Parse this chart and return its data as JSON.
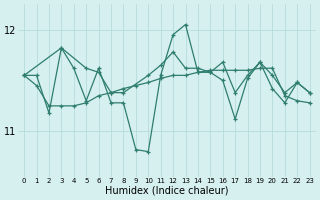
{
  "line1": {
    "x": [
      0,
      1,
      2,
      3,
      4,
      5,
      6,
      7,
      8,
      9,
      10,
      11,
      12,
      13,
      14,
      15,
      16,
      17,
      18,
      19,
      20,
      21,
      22,
      23
    ],
    "y": [
      11.55,
      11.55,
      11.18,
      11.82,
      11.62,
      11.3,
      11.62,
      11.28,
      11.28,
      10.82,
      10.8,
      11.55,
      11.95,
      12.05,
      11.58,
      11.58,
      11.5,
      11.12,
      11.52,
      11.68,
      11.42,
      11.28,
      11.48,
      11.38
    ]
  },
  "line2": {
    "x": [
      0,
      3,
      5,
      6,
      7,
      8,
      10,
      11,
      12,
      13,
      14,
      15,
      16,
      17,
      18,
      19,
      20,
      21,
      22,
      23
    ],
    "y": [
      11.55,
      11.82,
      11.62,
      11.58,
      11.38,
      11.38,
      11.55,
      11.65,
      11.78,
      11.62,
      11.62,
      11.58,
      11.68,
      11.38,
      11.55,
      11.68,
      11.55,
      11.38,
      11.48,
      11.38
    ]
  },
  "line3": {
    "x": [
      0,
      1,
      2,
      3,
      4,
      5,
      6,
      7,
      8,
      9,
      10,
      11,
      12,
      13,
      14,
      15,
      16,
      17,
      18,
      19,
      20,
      21,
      22,
      23
    ],
    "y": [
      11.55,
      11.45,
      11.25,
      11.25,
      11.25,
      11.28,
      11.35,
      11.38,
      11.42,
      11.45,
      11.48,
      11.52,
      11.55,
      11.55,
      11.58,
      11.6,
      11.6,
      11.6,
      11.6,
      11.62,
      11.62,
      11.35,
      11.3,
      11.28
    ]
  },
  "line_color": "#2e7d6e",
  "bg_color": "#d6f0ef",
  "grid_color": "#b0d8d5",
  "xlabel": "Humidex (Indice chaleur)",
  "yticks": [
    11,
    12
  ],
  "ylim": [
    10.55,
    12.25
  ],
  "xlim": [
    -0.5,
    23.5
  ],
  "xticks": [
    0,
    1,
    2,
    3,
    4,
    5,
    6,
    7,
    8,
    9,
    10,
    11,
    12,
    13,
    14,
    15,
    16,
    17,
    18,
    19,
    20,
    21,
    22,
    23
  ]
}
